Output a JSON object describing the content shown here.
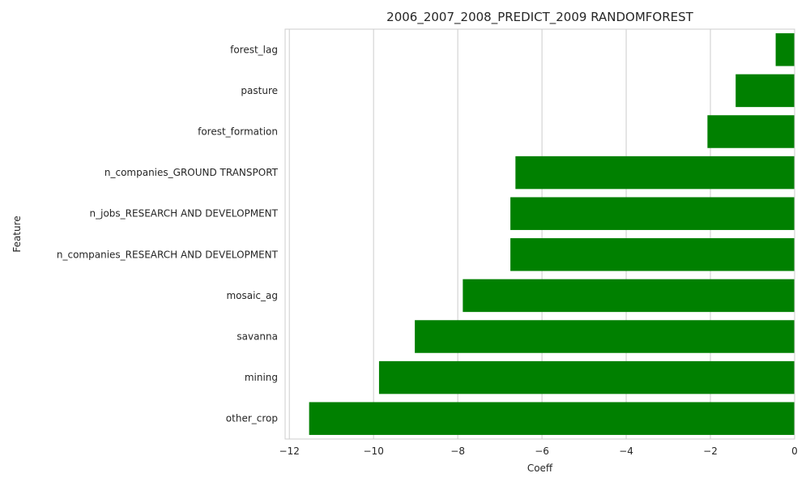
{
  "chart_data": {
    "type": "bar",
    "orientation": "horizontal",
    "title": "2006_2007_2008_PREDICT_2009 RANDOMFOREST",
    "xlabel": "Coeff",
    "ylabel": "Feature",
    "categories": [
      "forest_lag",
      "pasture",
      "forest_formation",
      "n_companies_GROUND TRANSPORT",
      "n_jobs_RESEARCH AND DEVELOPMENT",
      "n_companies_RESEARCH AND DEVELOPMENT",
      "mosaic_ag",
      "savanna",
      "mining",
      "other_crop"
    ],
    "values": [
      -0.45,
      -1.4,
      -2.07,
      -6.63,
      -6.75,
      -6.75,
      -7.88,
      -9.02,
      -9.87,
      -11.53
    ],
    "xlim": [
      -12.1,
      0
    ],
    "xticks": [
      -12,
      -10,
      -8,
      -6,
      -4,
      -2,
      0
    ],
    "xtick_labels": [
      "−12",
      "−10",
      "−8",
      "−6",
      "−4",
      "−2",
      "0"
    ],
    "bar_color": "#008000",
    "grid": "vertical"
  }
}
